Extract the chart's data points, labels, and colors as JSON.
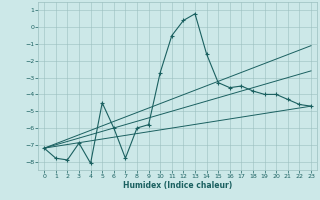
{
  "xlabel": "Humidex (Indice chaleur)",
  "bg_color": "#cce8e8",
  "grid_color": "#9bbfbf",
  "line_color": "#1a6060",
  "xlim": [
    -0.5,
    23.5
  ],
  "ylim": [
    -8.5,
    1.5
  ],
  "yticks": [
    1,
    0,
    -1,
    -2,
    -3,
    -4,
    -5,
    -6,
    -7,
    -8
  ],
  "xticks": [
    0,
    1,
    2,
    3,
    4,
    5,
    6,
    7,
    8,
    9,
    10,
    11,
    12,
    13,
    14,
    15,
    16,
    17,
    18,
    19,
    20,
    21,
    22,
    23
  ],
  "curve_x": [
    0,
    1,
    2,
    3,
    4,
    5,
    6,
    7,
    8,
    9,
    10,
    11,
    12,
    13,
    14,
    15,
    16,
    17,
    18,
    19,
    20,
    21,
    22,
    23
  ],
  "curve_y": [
    -7.2,
    -7.8,
    -7.9,
    -6.9,
    -8.1,
    -4.5,
    -6.0,
    -7.8,
    -6.0,
    -5.8,
    -2.7,
    -0.5,
    0.4,
    0.8,
    -1.6,
    -3.3,
    -3.6,
    -3.5,
    -3.8,
    -4.0,
    -4.0,
    -4.3,
    -4.6,
    -4.7
  ],
  "trend1_x": [
    0,
    23
  ],
  "trend1_y": [
    -7.2,
    -4.7
  ],
  "trend2_x": [
    0,
    23
  ],
  "trend2_y": [
    -7.2,
    -1.1
  ],
  "linear_x": [
    0,
    1,
    2,
    3,
    4,
    5,
    6,
    7,
    8,
    9,
    10,
    11,
    12,
    13,
    14,
    15,
    16,
    17,
    18,
    19,
    20,
    21,
    22,
    23
  ],
  "linear_y": [
    -7.2,
    -7.0,
    -6.8,
    -6.6,
    -6.4,
    -6.2,
    -6.0,
    -5.8,
    -5.6,
    -5.4,
    -5.2,
    -5.0,
    -4.8,
    -4.6,
    -4.4,
    -4.2,
    -4.0,
    -3.8,
    -3.6,
    -3.4,
    -3.2,
    -3.0,
    -2.8,
    -2.6
  ]
}
